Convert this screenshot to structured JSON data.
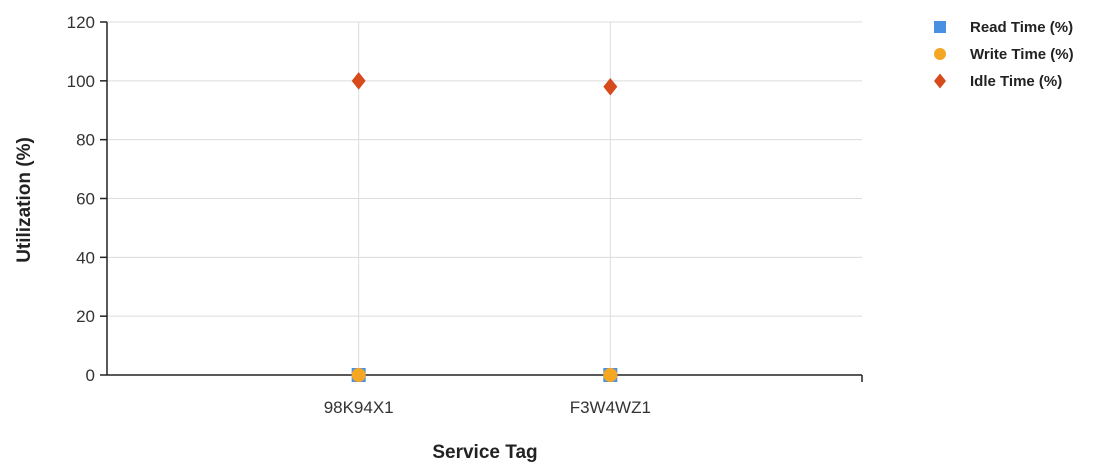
{
  "chart_data": {
    "type": "scatter",
    "title": "",
    "xlabel": "Service Tag",
    "ylabel": "Utilization (%)",
    "categories": [
      "98K94X1",
      "F3W4WZ1"
    ],
    "ylim": [
      0,
      120
    ],
    "yticks": [
      0,
      20,
      40,
      60,
      80,
      100,
      120
    ],
    "grid": true,
    "legend_position": "top-right",
    "series": [
      {
        "name": "Read Time (%)",
        "marker": "square",
        "color": "#4a90e2",
        "values": [
          0,
          0
        ]
      },
      {
        "name": "Write Time (%)",
        "marker": "circle",
        "color": "#f5a623",
        "values": [
          0,
          0
        ]
      },
      {
        "name": "Idle Time (%)",
        "marker": "diamond",
        "color": "#d64a1c",
        "values": [
          100,
          98
        ]
      }
    ]
  }
}
